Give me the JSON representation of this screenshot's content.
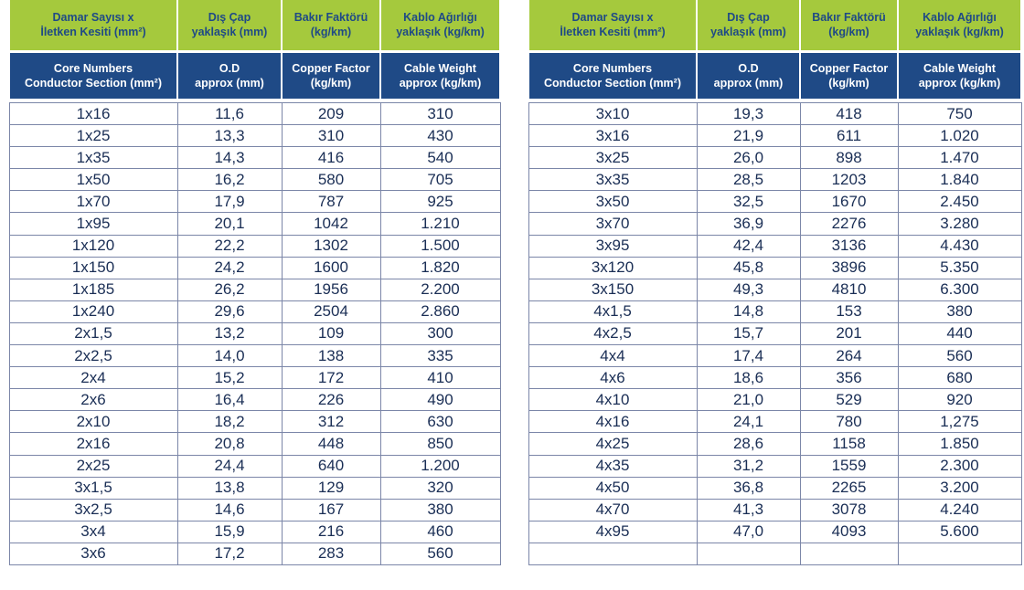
{
  "headers": {
    "tr": [
      "Damar Sayısı x\nİletken Kesiti (mm²)",
      "Dış Çap\nyaklaşık (mm)",
      "Bakır Faktörü\n(kg/km)",
      "Kablo Ağırlığı\nyaklaşık (kg/km)"
    ],
    "en": [
      "Core Numbers\nConductor Section (mm²)",
      "O.D\napprox (mm)",
      "Copper Factor\n(kg/km)",
      "Cable Weight\napprox (kg/km)"
    ]
  },
  "colors": {
    "header_green": "#a5c93d",
    "header_blue": "#1f4a86",
    "text_blue": "#1a2e55",
    "grid": "#7b86a8"
  },
  "left_rows": [
    [
      "1x16",
      "11,6",
      "209",
      "310"
    ],
    [
      "1x25",
      "13,3",
      "310",
      "430"
    ],
    [
      "1x35",
      "14,3",
      "416",
      "540"
    ],
    [
      "1x50",
      "16,2",
      "580",
      "705"
    ],
    [
      "1x70",
      "17,9",
      "787",
      "925"
    ],
    [
      "1x95",
      "20,1",
      "1042",
      "1.210"
    ],
    [
      "1x120",
      "22,2",
      "1302",
      "1.500"
    ],
    [
      "1x150",
      "24,2",
      "1600",
      "1.820"
    ],
    [
      "1x185",
      "26,2",
      "1956",
      "2.200"
    ],
    [
      "1x240",
      "29,6",
      "2504",
      "2.860"
    ],
    [
      "2x1,5",
      "13,2",
      "109",
      "300"
    ],
    [
      "2x2,5",
      "14,0",
      "138",
      "335"
    ],
    [
      "2x4",
      "15,2",
      "172",
      "410"
    ],
    [
      "2x6",
      "16,4",
      "226",
      "490"
    ],
    [
      "2x10",
      "18,2",
      "312",
      "630"
    ],
    [
      "2x16",
      "20,8",
      "448",
      "850"
    ],
    [
      "2x25",
      "24,4",
      "640",
      "1.200"
    ],
    [
      "3x1,5",
      "13,8",
      "129",
      "320"
    ],
    [
      "3x2,5",
      "14,6",
      "167",
      "380"
    ],
    [
      "3x4",
      "15,9",
      "216",
      "460"
    ],
    [
      "3x6",
      "17,2",
      "283",
      "560"
    ]
  ],
  "right_rows": [
    [
      "3x10",
      "19,3",
      "418",
      "750"
    ],
    [
      "3x16",
      "21,9",
      "611",
      "1.020"
    ],
    [
      "3x25",
      "26,0",
      "898",
      "1.470"
    ],
    [
      "3x35",
      "28,5",
      "1203",
      "1.840"
    ],
    [
      "3x50",
      "32,5",
      "1670",
      "2.450"
    ],
    [
      "3x70",
      "36,9",
      "2276",
      "3.280"
    ],
    [
      "3x95",
      "42,4",
      "3136",
      "4.430"
    ],
    [
      "3x120",
      "45,8",
      "3896",
      "5.350"
    ],
    [
      "3x150",
      "49,3",
      "4810",
      "6.300"
    ],
    [
      "4x1,5",
      "14,8",
      "153",
      "380"
    ],
    [
      "4x2,5",
      "15,7",
      "201",
      "440"
    ],
    [
      "4x4",
      "17,4",
      "264",
      "560"
    ],
    [
      "4x6",
      "18,6",
      "356",
      "680"
    ],
    [
      "4x10",
      "21,0",
      "529",
      "920"
    ],
    [
      "4x16",
      "24,1",
      "780",
      "1,275"
    ],
    [
      "4x25",
      "28,6",
      "1158",
      "1.850"
    ],
    [
      "4x35",
      "31,2",
      "1559",
      "2.300"
    ],
    [
      "4x50",
      "36,8",
      "2265",
      "3.200"
    ],
    [
      "4x70",
      "41,3",
      "3078",
      "4.240"
    ],
    [
      "4x95",
      "47,0",
      "4093",
      "5.600"
    ],
    [
      "",
      "",
      "",
      ""
    ]
  ]
}
